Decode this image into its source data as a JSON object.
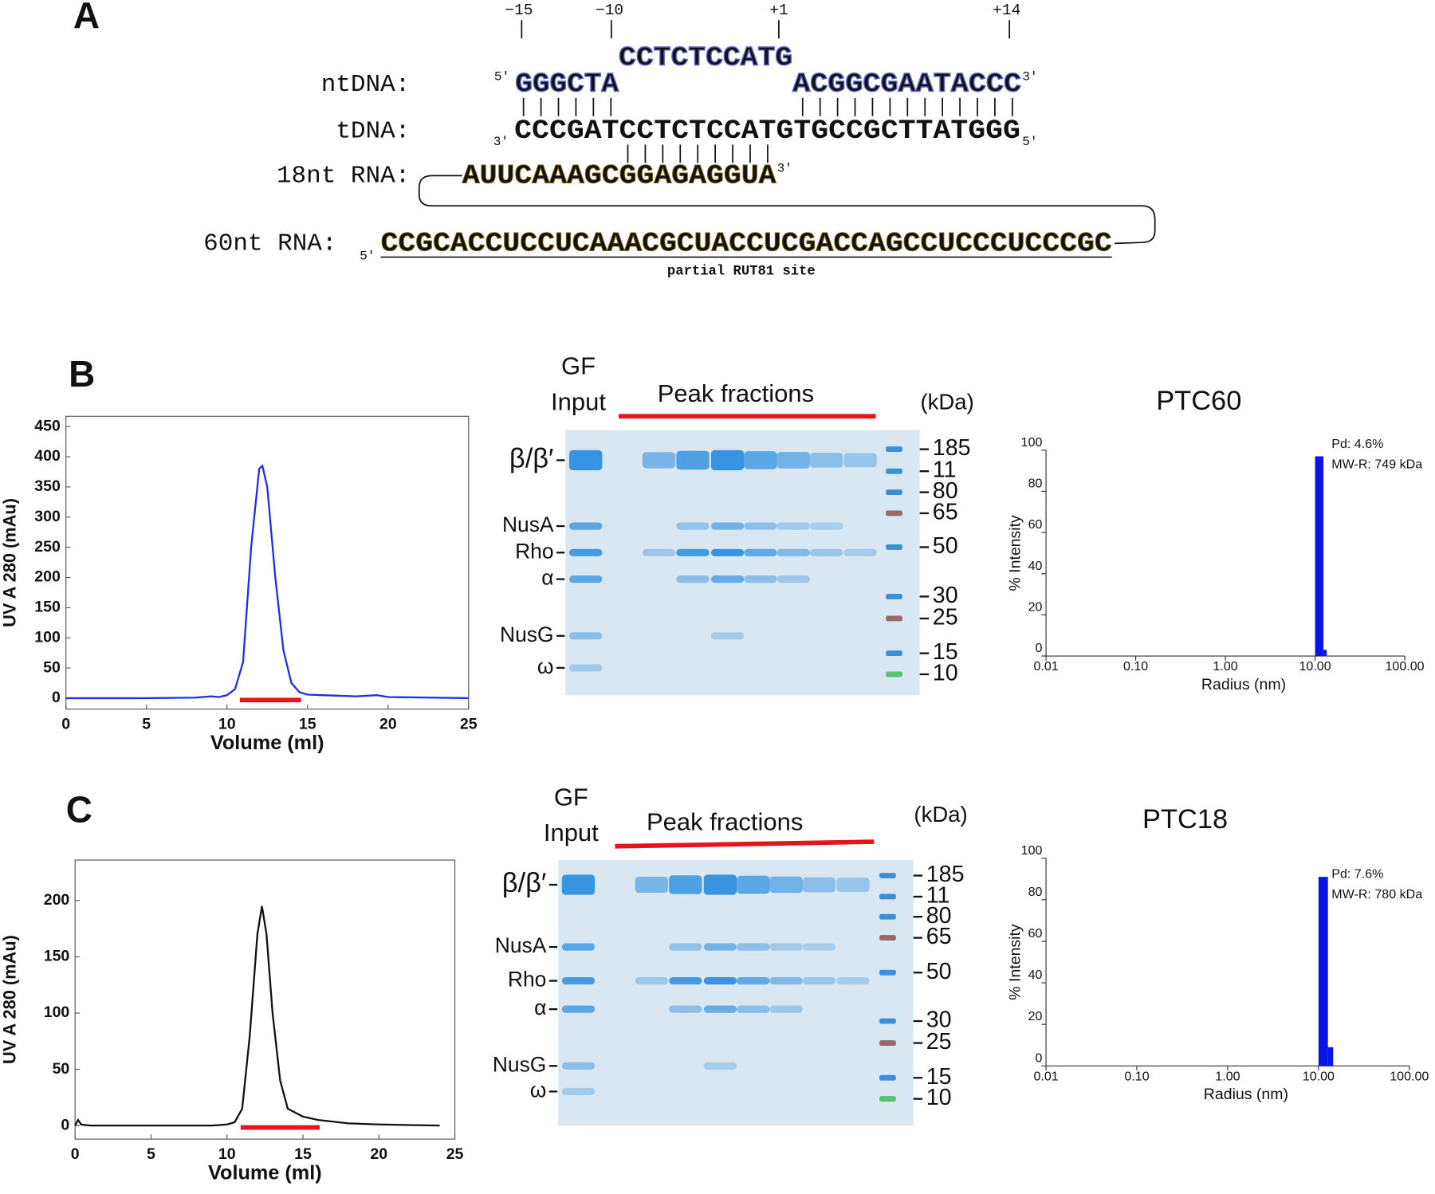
{
  "panel_labels": [
    "A",
    "B",
    "C"
  ],
  "sequence": {
    "positions": [
      "−15",
      "−10",
      "+1",
      "+14"
    ],
    "five_prime": "5′",
    "three_prime": "3′",
    "nt_label": "ntDNA:",
    "nt_left": "GGGCTA",
    "nt_bubble": "CCTCTCCATG",
    "nt_right": "ACGGCGAATACCC",
    "t_label": "tDNA:",
    "t_seq": "CCCGATCCTCTCCATGTGCCGCTTATGGG",
    "rna18_label": "18nt RNA:",
    "rna18_seq": "AUUCAAAGCGGAGAGGUA",
    "rna60_label": "60nt RNA:",
    "rna60_seq": "CCGCACCUCCUCAAACGCUACCUCGACCAGCCUCCCUCCCGC",
    "site_label": "partial RUT81 site"
  },
  "gels": [
    {
      "lane_labels": [
        "GF",
        "Input"
      ],
      "fractions_label": "Peak fractions",
      "unit": "(kDa)",
      "proteins": [
        "β/β′",
        "NusA",
        "Rho",
        "α",
        "NusG",
        "ω"
      ],
      "markers": [
        185,
        11,
        80,
        65,
        50,
        30,
        25,
        15,
        10
      ]
    },
    {
      "lane_labels": [
        "GF",
        "Input"
      ],
      "fractions_label": "Peak fractions",
      "unit": "(kDa)",
      "proteins": [
        "β/β′",
        "NusA",
        "Rho",
        "α",
        "NusG",
        "ω"
      ],
      "markers": [
        185,
        11,
        80,
        65,
        50,
        30,
        25,
        15,
        10
      ]
    }
  ],
  "chart_data": [
    {
      "type": "line",
      "xlabel": "Volume (ml)",
      "ylabel": "UV A 280 (mAu)",
      "color": "#1f2ee6",
      "x": [
        0,
        5,
        8,
        9,
        9.5,
        10,
        10.5,
        11,
        11.5,
        12,
        12.2,
        12.5,
        13,
        13.5,
        14,
        14.5,
        15,
        16,
        18,
        19.3,
        20,
        25
      ],
      "values": [
        0,
        0,
        1,
        3,
        2,
        5,
        15,
        60,
        250,
        380,
        385,
        350,
        200,
        80,
        25,
        10,
        6,
        5,
        3,
        5,
        2,
        0
      ],
      "xlim": [
        0,
        25
      ],
      "xticks": [
        0,
        5,
        10,
        15,
        20,
        25
      ],
      "ylim": [
        -18,
        467
      ],
      "yticks": [
        0,
        50,
        100,
        150,
        200,
        250,
        300,
        350,
        400,
        450
      ],
      "fraction_bar": {
        "range": [
          10.8,
          14.6
        ],
        "color": "#e8141b"
      }
    },
    {
      "type": "histogram",
      "title": "PTC60",
      "xlabel": "Radius (nm)",
      "ylabel": "% Intensity",
      "color": "#0a14e6",
      "annotations": [
        "Pd: 4.6%",
        "MW-R: 749 kDa"
      ],
      "bins": [
        10,
        12.4,
        13.5
      ],
      "values": [
        97,
        3
      ],
      "log_x": true,
      "xlim": [
        0.01,
        100
      ],
      "xticks": [
        0.01,
        {
          "value": 0.1,
          "label": "0.10"
        },
        {
          "value": 1,
          "label": "1.00"
        },
        {
          "value": 10,
          "label": "10.00"
        },
        {
          "value": 100,
          "label": "100.00"
        }
      ],
      "ylim": [
        0,
        100
      ],
      "yticks": [
        0,
        20,
        40,
        60,
        80,
        100
      ]
    },
    {
      "type": "line",
      "xlabel": "Volume (ml)",
      "ylabel": "UV A 280 (mAu)",
      "color": "#111111",
      "x": [
        0,
        0.2,
        0.4,
        1,
        5,
        9,
        10,
        10.5,
        11,
        11.5,
        12,
        12.3,
        12.6,
        13,
        13.5,
        14,
        15,
        16,
        18,
        20,
        24
      ],
      "values": [
        0,
        5,
        1,
        0,
        0,
        0,
        1,
        3,
        15,
        80,
        170,
        195,
        170,
        100,
        40,
        15,
        8,
        5,
        2,
        1,
        0
      ],
      "xlim": [
        0,
        25
      ],
      "xticks": [
        0,
        5,
        10,
        15,
        20,
        25
      ],
      "ylim": [
        -12,
        236
      ],
      "yticks": [
        0,
        50,
        100,
        150,
        200
      ],
      "fraction_bar": {
        "range": [
          10.9,
          16.1
        ],
        "color": "#e8141b"
      }
    },
    {
      "type": "histogram",
      "title": "PTC18",
      "xlabel": "Radius (nm)",
      "ylabel": "% Intensity",
      "color": "#0a14e6",
      "annotations": [
        "Pd: 7.6%",
        "MW-R: 780 kDa"
      ],
      "bins": [
        10,
        12.7,
        14.5
      ],
      "values": [
        91,
        9
      ],
      "log_x": true,
      "xlim": [
        0.01,
        100
      ],
      "xticks": [
        0.01,
        {
          "value": 0.1,
          "label": "0.10"
        },
        {
          "value": 1,
          "label": "1.00"
        },
        {
          "value": 10,
          "label": "10.00"
        },
        {
          "value": 100,
          "label": "100.00"
        }
      ],
      "ylim": [
        0,
        100
      ],
      "yticks": [
        0,
        20,
        40,
        60,
        80,
        100
      ]
    }
  ]
}
